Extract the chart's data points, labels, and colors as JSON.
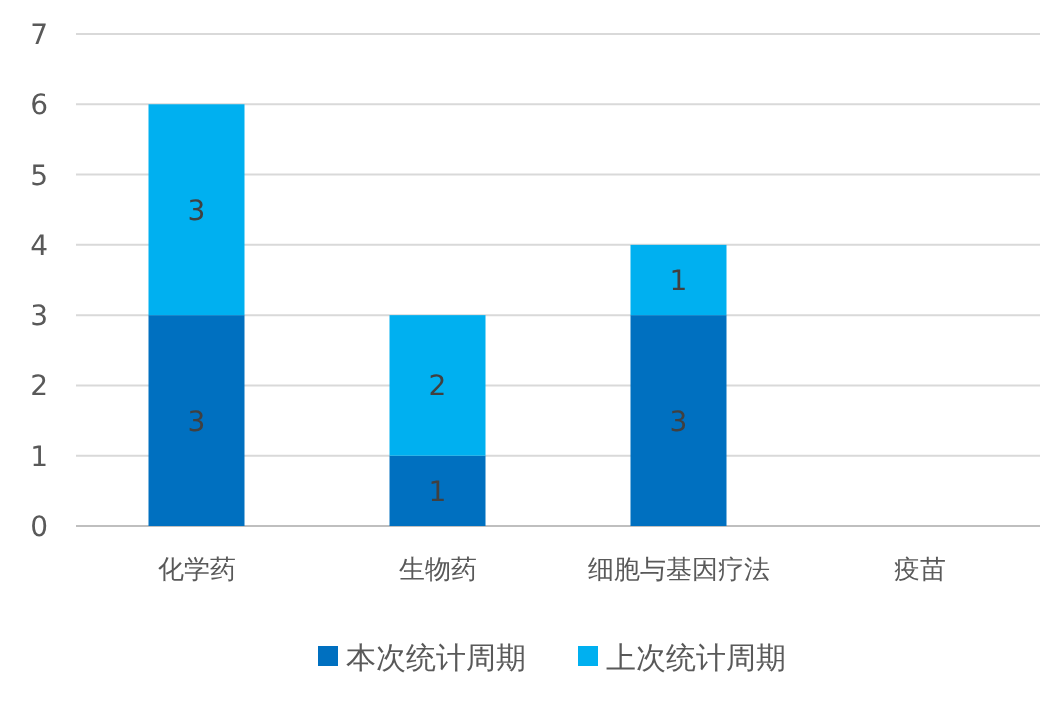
{
  "chart_data": {
    "type": "bar",
    "stacked": true,
    "categories": [
      "化学药",
      "生物药",
      "细胞与基因疗法",
      "疫苗"
    ],
    "series": [
      {
        "name": "本次统计周期",
        "color": "#0070c0",
        "values": [
          3,
          1,
          3,
          0
        ],
        "value_labels": [
          "3",
          "1",
          "3",
          null
        ]
      },
      {
        "name": "上次统计周期",
        "color": "#00b0f0",
        "values": [
          3,
          2,
          1,
          0
        ],
        "value_labels": [
          "3",
          "2",
          "1",
          null
        ]
      }
    ],
    "ylim": [
      0,
      7
    ],
    "yticks": [
      0,
      1,
      2,
      3,
      4,
      5,
      6,
      7
    ],
    "grid": "y",
    "legend": "bottom"
  }
}
